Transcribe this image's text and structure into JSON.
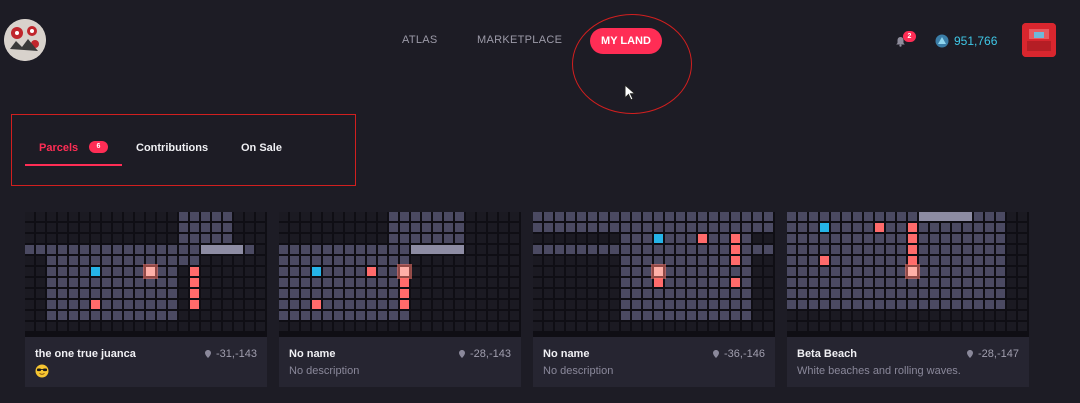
{
  "nav": {
    "links": [
      "ATLAS",
      "MARKETPLACE"
    ],
    "active": "MY LAND"
  },
  "header": {
    "notifications": "2",
    "balance": "951,766"
  },
  "tabs": {
    "parcels": "Parcels",
    "parcels_count": "6",
    "contributions": "Contributions",
    "on_sale": "On Sale"
  },
  "colors": {
    "accent": "#ff2d55",
    "mana": "#3fc7e6",
    "owned_highlight": "#ff6b6b",
    "selected_blue": "#25b4e8"
  },
  "cards": [
    {
      "name": "the one true juanca",
      "coords": "-31,-143",
      "has_emoji": true,
      "emoji_icon": "sunglasses-emoji-icon"
    },
    {
      "name": "No name",
      "coords": "-28,-143",
      "description": "No description"
    },
    {
      "name": "No name",
      "coords": "-36,-146",
      "description": "No description"
    },
    {
      "name": "Beta Beach",
      "coords": "-28,-147",
      "description": "White beaches and rolling waves."
    }
  ]
}
